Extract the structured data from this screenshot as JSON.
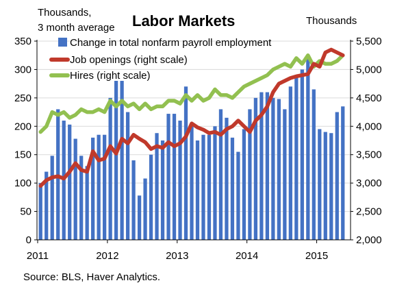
{
  "chart_data": {
    "type": "bar",
    "title": "Labor Markets",
    "left_axis_label": [
      "Thousands,",
      "3 month average"
    ],
    "right_axis_label": "Thousands",
    "source": "Source: BLS, Haver Analytics.",
    "x_ticks": [
      "2011",
      "2012",
      "2013",
      "2014",
      "2015"
    ],
    "y_left": {
      "min": 0,
      "max": 350,
      "ticks": [
        "0",
        "50",
        "100",
        "150",
        "200",
        "250",
        "300",
        "350"
      ]
    },
    "y_right": {
      "min": 2000,
      "max": 5500,
      "ticks": [
        "2,000",
        "2,500",
        "3,000",
        "3,500",
        "4,000",
        "4,500",
        "5,000",
        "5,500"
      ]
    },
    "legend": [
      "Change in total nonfarm payroll employment",
      "Job openings (right scale)",
      "Hires (right scale)"
    ],
    "colors": {
      "payroll": "#4472C4",
      "openings": "#C0392B",
      "hires": "#92C050"
    },
    "series": [
      {
        "name": "Change in total nonfarm payroll employment",
        "axis": "left",
        "type": "bar",
        "values": [
          100,
          120,
          148,
          230,
          210,
          203,
          178,
          148,
          130,
          180,
          185,
          185,
          250,
          280,
          280,
          225,
          140,
          78,
          108,
          150,
          188,
          175,
          222,
          222,
          210,
          270,
          205,
          175,
          185,
          185,
          200,
          230,
          215,
          180,
          155,
          195,
          230,
          250,
          260,
          260,
          250,
          248,
          230,
          270,
          290,
          300,
          320,
          265,
          195,
          190,
          188,
          225,
          235
        ]
      },
      {
        "name": "Job openings (right scale)",
        "axis": "right",
        "type": "line",
        "values": [
          2950,
          3050,
          3100,
          3120,
          3080,
          3200,
          3350,
          3230,
          3200,
          3560,
          3400,
          3430,
          3650,
          3520,
          3780,
          3700,
          3850,
          3780,
          3720,
          3600,
          3650,
          3620,
          3720,
          3650,
          3700,
          3820,
          4050,
          3980,
          3940,
          3880,
          3900,
          3850,
          3950,
          4000,
          4100,
          4000,
          3900,
          4100,
          4200,
          4350,
          4600,
          4750,
          4800,
          4850,
          4880,
          4900,
          4920,
          5100,
          5050,
          5300,
          5350,
          5300,
          5250
        ]
      },
      {
        "name": "Hires (right scale)",
        "axis": "right",
        "type": "line",
        "values": [
          3900,
          4000,
          4250,
          4200,
          4250,
          4150,
          4200,
          4300,
          4250,
          4250,
          4300,
          4250,
          4450,
          4350,
          4450,
          4350,
          4400,
          4300,
          4400,
          4300,
          4350,
          4350,
          4450,
          4450,
          4400,
          4550,
          4450,
          4550,
          4450,
          4500,
          4650,
          4550,
          4550,
          4500,
          4600,
          4700,
          4750,
          4800,
          4850,
          4900,
          5000,
          5050,
          5100,
          5050,
          5200,
          5100,
          5250,
          5050,
          5150,
          5100,
          5100,
          5150,
          5250
        ]
      }
    ]
  }
}
